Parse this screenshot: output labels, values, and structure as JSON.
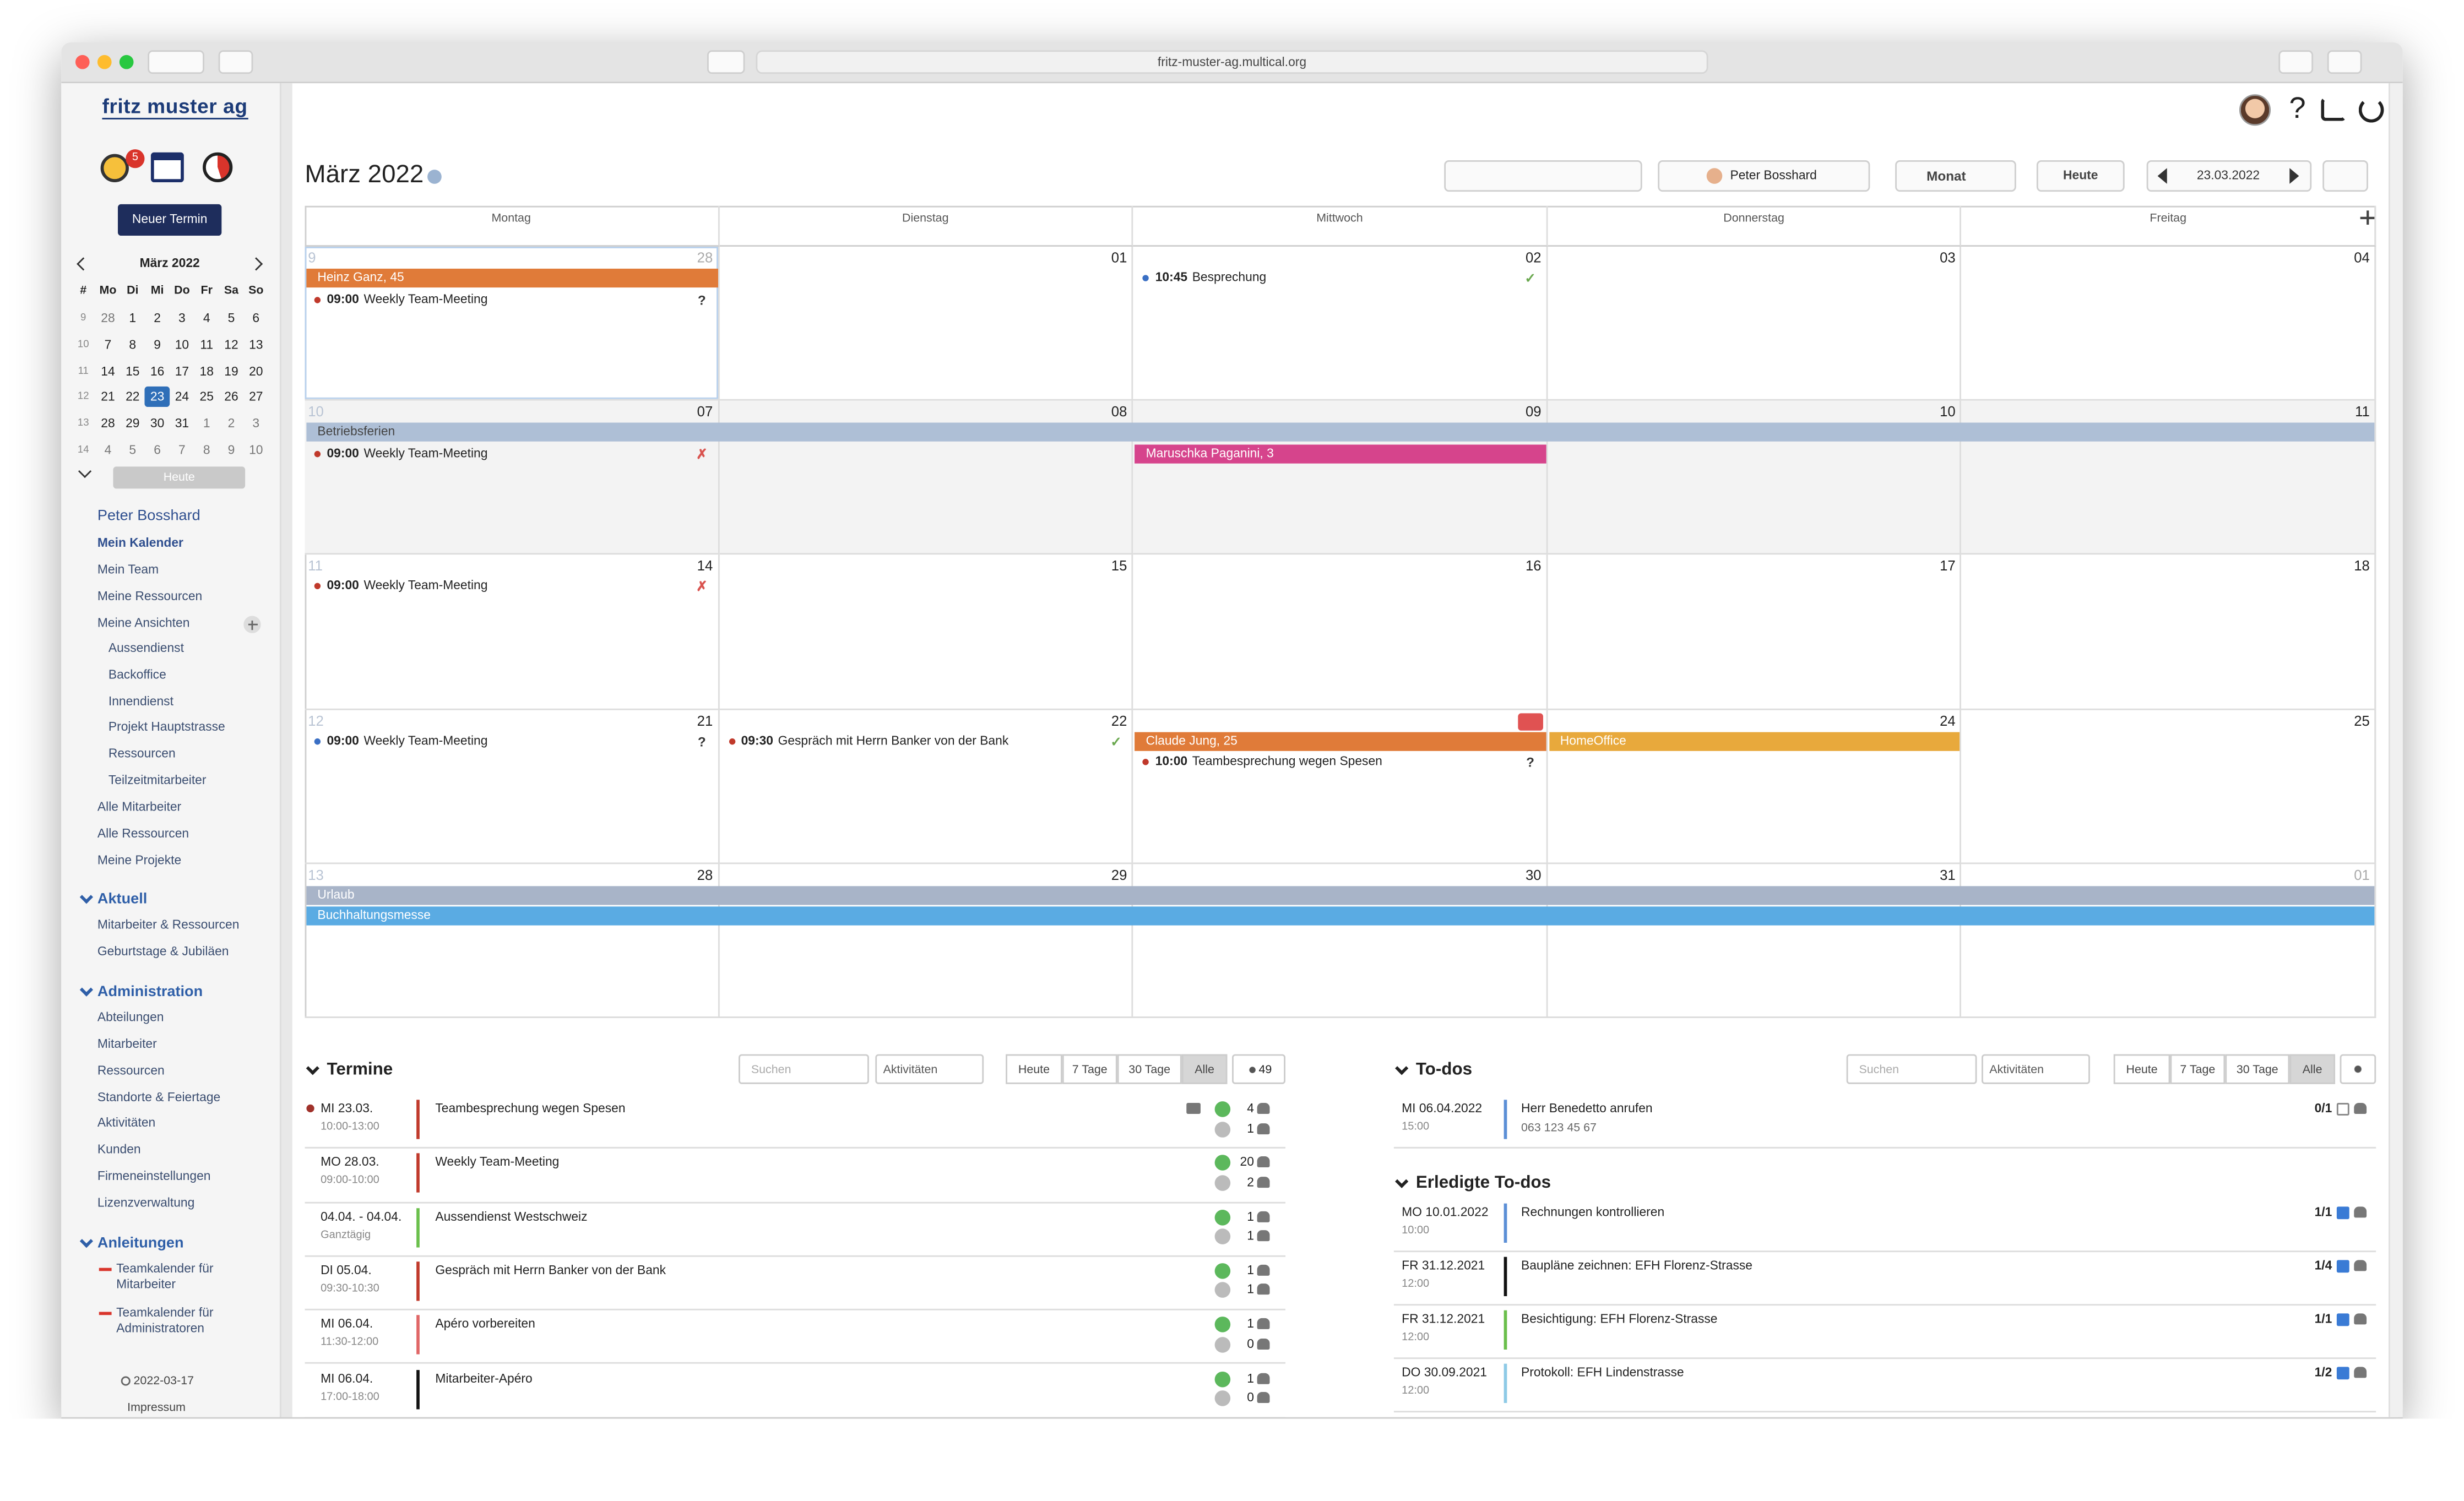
{
  "browser": {
    "url": "fritz-muster-ag.multical.org"
  },
  "sidebar": {
    "logo": "fritz muster ag",
    "badge": "5",
    "new_event": "Neuer Termin",
    "mini_calendar": {
      "title": "März 2022",
      "weekdays": [
        "#",
        "Mo",
        "Di",
        "Mi",
        "Do",
        "Fr",
        "Sa",
        "So"
      ],
      "weeks": [
        [
          "9",
          "28",
          "1",
          "2",
          "3",
          "4",
          "5",
          "6"
        ],
        [
          "10",
          "7",
          "8",
          "9",
          "10",
          "11",
          "12",
          "13"
        ],
        [
          "11",
          "14",
          "15",
          "16",
          "17",
          "18",
          "19",
          "20"
        ],
        [
          "12",
          "21",
          "22",
          "23",
          "24",
          "25",
          "26",
          "27"
        ],
        [
          "13",
          "28",
          "29",
          "30",
          "31",
          "1",
          "2",
          "3"
        ],
        [
          "14",
          "4",
          "5",
          "6",
          "7",
          "8",
          "9",
          "10"
        ]
      ],
      "today": "Heute"
    },
    "user": "Peter Bosshard",
    "personal": [
      "Mein Kalender",
      "Mein Team",
      "Meine Ressourcen",
      "Meine Ansichten"
    ],
    "views": [
      "Aussendienst",
      "Backoffice",
      "Innendienst",
      "Projekt Hauptstrasse",
      "Ressourcen",
      "Teilzeitmitarbeiter"
    ],
    "all": [
      "Alle Mitarbeiter",
      "Alle Ressourcen",
      "Meine Projekte"
    ],
    "sections": [
      {
        "title": "Aktuell",
        "items": [
          "Mitarbeiter & Ressourcen",
          "Geburtstage & Jubiläen"
        ]
      },
      {
        "title": "Administration",
        "items": [
          "Abteilungen",
          "Mitarbeiter",
          "Ressourcen",
          "Standorte & Feiertage",
          "Aktivitäten",
          "Kunden",
          "Firmeneinstellungen",
          "Lizenzverwaltung"
        ]
      },
      {
        "title": "Anleitungen",
        "items": [
          "Teamkalender für Mitarbeiter",
          "Teamkalender für Administratoren"
        ]
      }
    ],
    "footer": {
      "version": "2022-03-17",
      "imprint": "Impressum"
    }
  },
  "header": {
    "title": "März 2022",
    "help": "?",
    "user": "Peter Bosshard",
    "view": "Monat",
    "today": "Heute",
    "date": "23.03.2022"
  },
  "calendar": {
    "weekdays": [
      "Montag",
      "Dienstag",
      "Mittwoch",
      "Donnerstag",
      "Freitag"
    ],
    "weeks": [
      {
        "number": "9",
        "days": [
          "28",
          "01",
          "02",
          "03",
          "04"
        ],
        "events": [
          {
            "day": 0,
            "span": 1,
            "label": "Heinz Ganz, 45",
            "color": "#e07b39",
            "text_color": "#ffffff"
          },
          {
            "day": 0,
            "time": "09:00",
            "title": "Weekly Team-Meeting",
            "status": "?",
            "color": "#c0392b",
            "status_color": "#333333"
          },
          {
            "day": 2,
            "time": "10:45",
            "title": "Besprechung",
            "status": "✓",
            "color": "#3a6fc4",
            "status_color": "#6aa84f"
          }
        ]
      },
      {
        "number": "10",
        "days": [
          "07",
          "08",
          "09",
          "10",
          "11"
        ],
        "events": [
          {
            "day": 0,
            "span": 5,
            "label": "Betriebsferien",
            "color": "#aebfd6",
            "text_color": "#444444"
          },
          {
            "day": 0,
            "time": "09:00",
            "title": "Weekly Team-Meeting",
            "status": "✗",
            "color": "#c0392b",
            "status_color": "#d9534f"
          },
          {
            "day": 2,
            "span": 1,
            "label": "Maruschka Paganini, 3",
            "color": "#d6448c",
            "text_color": "#ffffff"
          }
        ]
      },
      {
        "number": "11",
        "days": [
          "14",
          "15",
          "16",
          "17",
          "18"
        ],
        "events": [
          {
            "day": 0,
            "time": "09:00",
            "title": "Weekly Team-Meeting",
            "status": "✗",
            "color": "#c0392b",
            "status_color": "#d9534f"
          }
        ]
      },
      {
        "number": "12",
        "days": [
          "21",
          "22",
          "23",
          "24",
          "25"
        ],
        "events": [
          {
            "day": 0,
            "time": "09:00",
            "title": "Weekly Team-Meeting",
            "status": "?",
            "color": "#3a6fc4",
            "status_color": "#333333"
          },
          {
            "day": 1,
            "time": "09:30",
            "title": "Gespräch mit Herrn Banker von der Bank",
            "status": "✓",
            "color": "#c0392b",
            "status_color": "#6aa84f"
          },
          {
            "day": 2,
            "span": 1,
            "label": "Claude Jung, 25",
            "color": "#e07b39",
            "text_color": "#ffffff"
          },
          {
            "day": 2,
            "time": "10:00",
            "title": "Teambesprechung wegen Spesen",
            "status": "?",
            "color": "#c0392b",
            "status_color": "#333333"
          },
          {
            "day": 3,
            "span": 1,
            "label": "HomeOffice",
            "color": "#e8a93c",
            "text_color": "#ffffff"
          }
        ]
      },
      {
        "number": "13",
        "days": [
          "28",
          "29",
          "30",
          "31",
          "01"
        ],
        "events": [
          {
            "day": 0,
            "span": 5,
            "label": "Urlaub",
            "color": "#a8b4c8",
            "text_color": "#ffffff"
          },
          {
            "day": 0,
            "span": 5,
            "label": "Buchhaltungsmesse",
            "color": "#5aabe3",
            "text_color": "#ffffff"
          }
        ]
      }
    ]
  },
  "termine": {
    "title": "Termine",
    "search": "Suchen",
    "filter": "Aktivitäten",
    "ranges": [
      "Heute",
      "7 Tage",
      "30 Tage",
      "Alle"
    ],
    "count": "49",
    "rows": [
      {
        "date": "MI 23.03.",
        "time": "10:00-13:00",
        "title": "Teambesprechung wegen Spesen",
        "counts": [
          "4",
          "1"
        ],
        "color": "#c0392b"
      },
      {
        "date": "MO 28.03.",
        "time": "09:00-10:00",
        "title": "Weekly Team-Meeting",
        "counts": [
          "20",
          "2"
        ],
        "color": "#c0392b"
      },
      {
        "date": "04.04. - 04.04.",
        "time": "Ganztägig",
        "title": "Aussendienst Westschweiz",
        "counts": [
          "1",
          "1"
        ],
        "color": "#6abf4b"
      },
      {
        "date": "DI 05.04.",
        "time": "09:30-10:30",
        "title": "Gespräch mit Herrn Banker von der Bank",
        "counts": [
          "1",
          "1"
        ],
        "color": "#c0392b"
      },
      {
        "date": "MI 06.04.",
        "time": "11:30-12:00",
        "title": "Apéro vorbereiten",
        "counts": [
          "1",
          "0"
        ],
        "color": "#e06666"
      },
      {
        "date": "MI 06.04.",
        "time": "17:00-18:00",
        "title": "Mitarbeiter-Apéro",
        "counts": [
          "1",
          "0"
        ],
        "color": "#111111"
      }
    ]
  },
  "todos": {
    "title": "To-dos",
    "search": "Suchen",
    "filter": "Aktivitäten",
    "ranges": [
      "Heute",
      "7 Tage",
      "30 Tage",
      "Alle"
    ],
    "open": [
      {
        "date": "MI 06.04.2022",
        "time": "15:00",
        "title": "Herr Benedetto anrufen",
        "sub": "063 123 45 67",
        "progress": "0/1",
        "color": "#5b8fd6"
      }
    ],
    "done_title": "Erledigte To-dos",
    "done": [
      {
        "date": "MO 10.01.2022",
        "time": "10:00",
        "title": "Rechnungen kontrollieren",
        "progress": "1/1",
        "color": "#5b8fd6"
      },
      {
        "date": "FR 31.12.2021",
        "time": "12:00",
        "title": "Baupläne zeichnen: EFH Florenz-Strasse",
        "progress": "1/4",
        "color": "#111111"
      },
      {
        "date": "FR 31.12.2021",
        "time": "12:00",
        "title": "Besichtigung: EFH Florenz-Strasse",
        "progress": "1/1",
        "color": "#6abf4b"
      },
      {
        "date": "DO 30.09.2021",
        "time": "12:00",
        "title": "Protokoll: EFH Lindenstrasse",
        "progress": "1/2",
        "color": "#8ecae6"
      }
    ]
  }
}
